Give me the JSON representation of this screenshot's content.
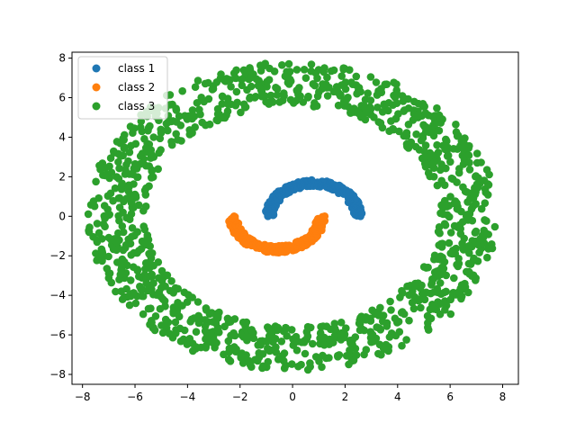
{
  "chart_data": {
    "type": "scatter",
    "title": "",
    "xlabel": "",
    "ylabel": "",
    "xlim": [
      -8.4,
      8.6
    ],
    "ylim": [
      -8.5,
      8.3
    ],
    "xticks": [
      -8,
      -6,
      -4,
      -2,
      0,
      2,
      4,
      6,
      8
    ],
    "yticks": [
      -8,
      -6,
      -4,
      -2,
      0,
      2,
      4,
      6,
      8
    ],
    "grid": false,
    "legend_position": "top-left",
    "series": [
      {
        "name": "class 1",
        "color": "#1f77b4",
        "shape": "upper half-moon",
        "center": [
          0.8,
          0.0
        ],
        "radius_range": [
          1.5,
          1.85
        ],
        "angle_range_deg": [
          0,
          180
        ],
        "count": 200
      },
      {
        "name": "class 2",
        "color": "#ff7f0e",
        "shape": "lower half-moon",
        "center": [
          -0.6,
          0.0
        ],
        "radius_range": [
          1.5,
          1.85
        ],
        "angle_range_deg": [
          180,
          360
        ],
        "count": 200
      },
      {
        "name": "class 3",
        "color": "#2ca02c",
        "shape": "ring",
        "center": [
          0.0,
          0.0
        ],
        "radius_range": [
          5.6,
          7.8
        ],
        "angle_range_deg": [
          0,
          360
        ],
        "count": 1200
      }
    ]
  }
}
